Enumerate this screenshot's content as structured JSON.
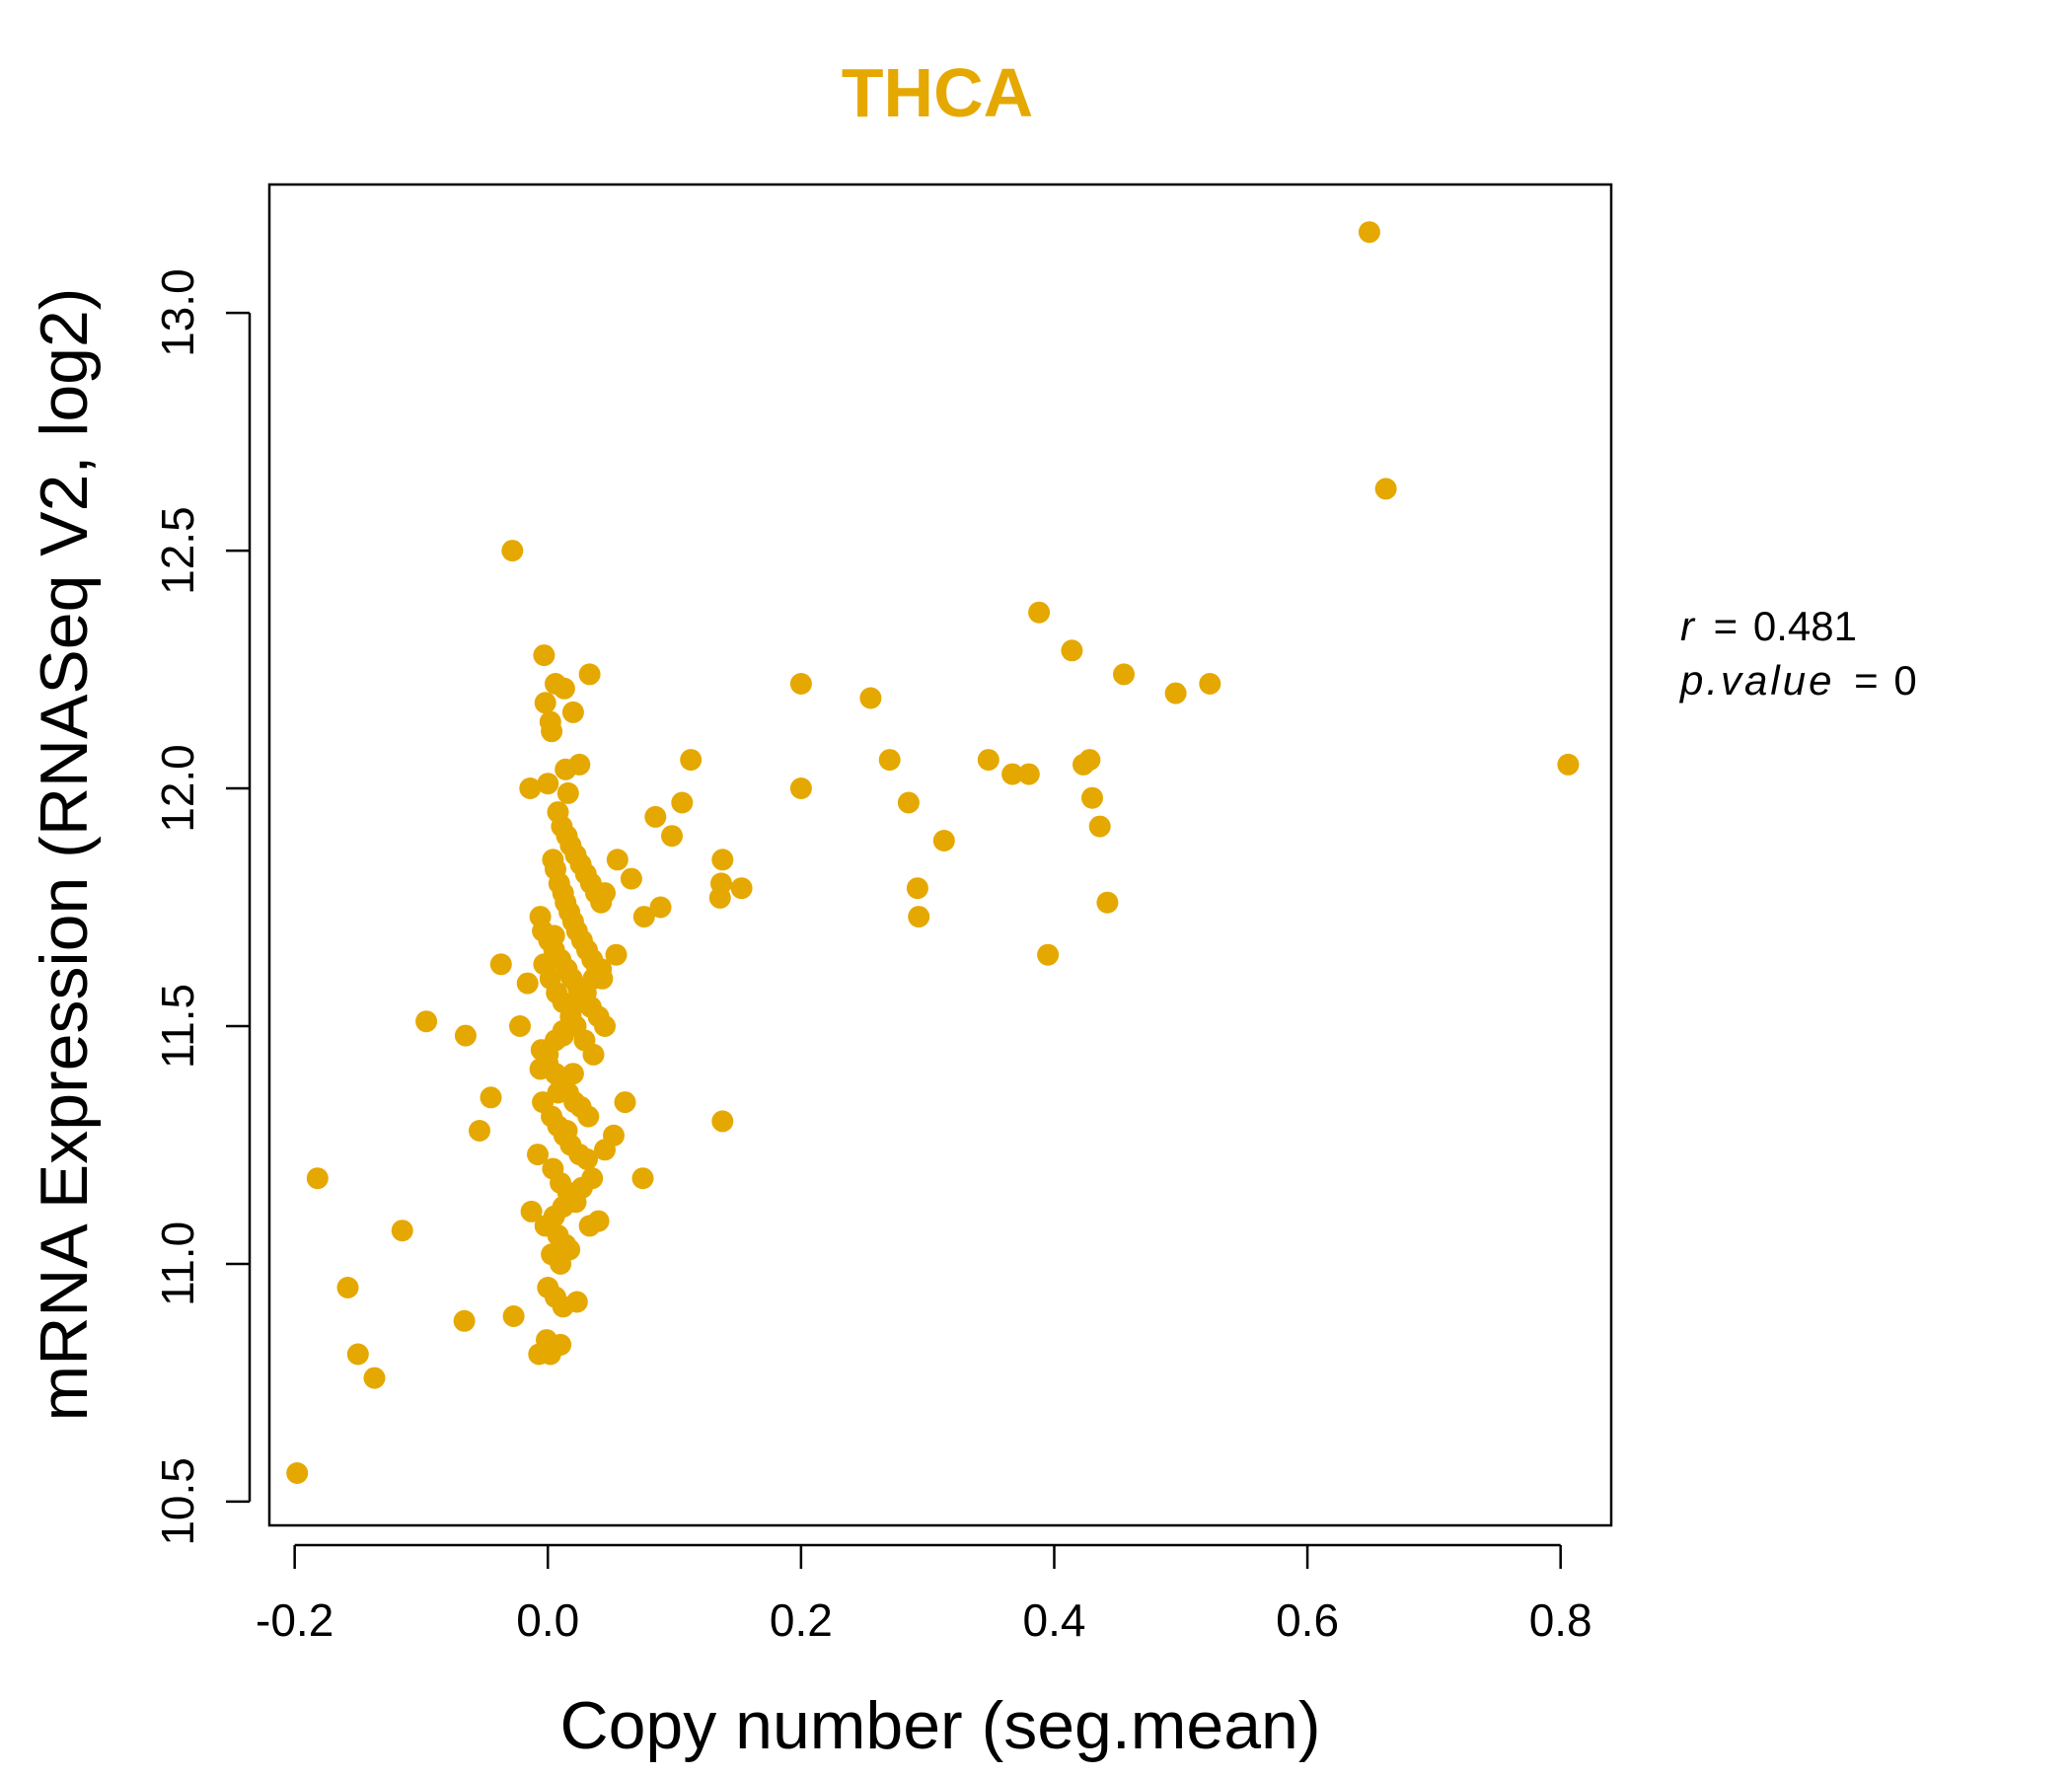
{
  "chart_data": {
    "type": "scatter",
    "title": "THCA",
    "xlabel": "Copy number (seg.mean)",
    "ylabel": "mRNA Expression (RNASeq V2, log2)",
    "xlim": [
      -0.22,
      0.84
    ],
    "ylim": [
      10.45,
      13.27
    ],
    "xticks": [
      -0.2,
      0.0,
      0.2,
      0.4,
      0.6,
      0.8
    ],
    "xtick_labels": [
      "-0.2",
      "0.0",
      "0.2",
      "0.4",
      "0.6",
      "0.8"
    ],
    "yticks": [
      10.5,
      11.0,
      11.5,
      12.0,
      12.5,
      13.0
    ],
    "ytick_labels": [
      "10.5",
      "11.0",
      "11.5",
      "12.0",
      "12.5",
      "13.0"
    ],
    "grid": false,
    "point_color": "#E5A800",
    "annotation": {
      "r_label": "r",
      "r_value": "0.481",
      "p_label": "p.value",
      "p_value": "0"
    },
    "x": [
      0.649,
      0.662,
      -0.028,
      0.388,
      0.414,
      0.455,
      0.496,
      0.523,
      0.2,
      0.255,
      0.806,
      0.348,
      0.367,
      0.38,
      0.423,
      0.428,
      0.43,
      0.436,
      0.442,
      0.395,
      0.27,
      0.285,
      0.292,
      0.293,
      0.313,
      0.2,
      0.113,
      0.106,
      0.098,
      0.085,
      0.138,
      0.137,
      0.153,
      0.136,
      0.138,
      0.066,
      0.076,
      0.089,
      0.055,
      0.045,
      0.054,
      0.033,
      -0.003,
      0.013,
      0.006,
      -0.002,
      0.02,
      0.002,
      0.003,
      0.014,
      0.025,
      0.016,
      -0.014,
      0.0,
      0.008,
      0.011,
      0.015,
      0.018,
      0.022,
      0.026,
      0.03,
      0.034,
      0.038,
      0.042,
      0.004,
      0.006,
      0.009,
      0.012,
      0.014,
      0.017,
      0.02,
      0.023,
      0.027,
      0.031,
      0.035,
      0.039,
      0.043,
      -0.006,
      -0.004,
      0.001,
      0.005,
      0.01,
      0.015,
      0.019,
      0.024,
      0.028,
      0.034,
      0.04,
      0.045,
      -0.003,
      0.002,
      0.007,
      0.012,
      0.018,
      0.022,
      0.029,
      0.036,
      -0.005,
      0.0,
      0.006,
      0.011,
      0.016,
      0.021,
      0.026,
      0.032,
      -0.004,
      0.003,
      0.008,
      0.013,
      0.018,
      0.025,
      0.031,
      -0.037,
      -0.022,
      -0.065,
      -0.096,
      -0.045,
      -0.054,
      -0.016,
      -0.006,
      0.0,
      0.006,
      0.012,
      0.018,
      0.024,
      0.03,
      0.036,
      0.042,
      0.061,
      0.052,
      0.045,
      0.035,
      0.027,
      0.02,
      0.012,
      0.005,
      -0.002,
      -0.008,
      0.004,
      0.01,
      0.016,
      0.022,
      0.075,
      0.033,
      0.04,
      0.008,
      0.014,
      0.003,
      0.01,
      0.017,
      -0.013,
      0.0,
      0.006,
      0.012,
      -0.182,
      -0.115,
      -0.158,
      -0.15,
      -0.137,
      -0.066,
      -0.027,
      -0.001,
      0.002,
      0.023,
      0.01,
      -0.007,
      -0.198,
      0.02,
      0.008,
      0.015,
      0.025,
      0.005,
      0.012
    ],
    "y": [
      13.17,
      12.63,
      12.5,
      12.37,
      12.29,
      12.24,
      12.2,
      12.22,
      12.22,
      12.19,
      12.05,
      12.06,
      12.03,
      12.03,
      12.05,
      12.06,
      11.98,
      11.92,
      11.76,
      11.65,
      12.06,
      11.97,
      11.79,
      11.73,
      11.89,
      12.0,
      12.06,
      11.97,
      11.9,
      11.94,
      11.85,
      11.8,
      11.79,
      11.77,
      11.3,
      11.81,
      11.73,
      11.75,
      11.85,
      11.78,
      11.65,
      12.24,
      12.28,
      12.21,
      12.22,
      12.18,
      12.16,
      12.14,
      12.12,
      12.04,
      12.05,
      11.99,
      12.0,
      12.01,
      11.95,
      11.92,
      11.9,
      11.88,
      11.86,
      11.84,
      11.82,
      11.8,
      11.78,
      11.76,
      11.85,
      11.83,
      11.8,
      11.78,
      11.76,
      11.74,
      11.72,
      11.7,
      11.68,
      11.66,
      11.64,
      11.62,
      11.6,
      11.73,
      11.7,
      11.68,
      11.66,
      11.64,
      11.62,
      11.6,
      11.58,
      11.56,
      11.54,
      11.52,
      11.5,
      11.63,
      11.6,
      11.57,
      11.55,
      11.52,
      11.5,
      11.47,
      11.44,
      11.45,
      11.42,
      11.4,
      11.38,
      11.36,
      11.34,
      11.33,
      11.31,
      11.34,
      11.31,
      11.29,
      11.27,
      11.25,
      11.23,
      11.22,
      11.63,
      11.5,
      11.48,
      11.51,
      11.35,
      11.28,
      11.59,
      11.41,
      11.44,
      11.47,
      11.49,
      11.52,
      11.55,
      11.57,
      11.6,
      11.62,
      11.34,
      11.27,
      11.24,
      11.18,
      11.16,
      11.14,
      11.12,
      11.1,
      11.08,
      11.23,
      11.2,
      11.17,
      11.15,
      11.13,
      11.18,
      11.08,
      11.09,
      11.06,
      11.04,
      11.02,
      11.0,
      11.03,
      11.11,
      10.95,
      10.93,
      10.91,
      11.18,
      11.07,
      10.95,
      10.81,
      10.76,
      10.88,
      10.89,
      10.84,
      10.81,
      10.92,
      10.83,
      10.81,
      10.56,
      11.4,
      11.36,
      11.28,
      11.55,
      11.69,
      11.48
    ]
  }
}
